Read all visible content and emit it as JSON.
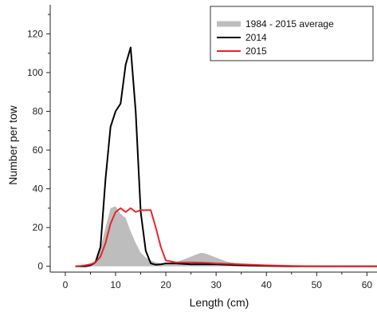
{
  "chart_data": {
    "type": "area",
    "xlabel": "Length (cm)",
    "ylabel": "Number per tow",
    "xlim": [
      -3,
      62
    ],
    "ylim": [
      -3,
      135
    ],
    "xticks": [
      0,
      10,
      20,
      30,
      40,
      50,
      60
    ],
    "yticks": [
      0,
      20,
      40,
      60,
      80,
      100,
      120
    ],
    "legend_position": "top-right",
    "series": [
      {
        "name": "1984 - 2015 average",
        "kind": "area",
        "color": "#bdbdbd",
        "x": [
          2,
          3,
          4,
          5,
          6,
          7,
          8,
          9,
          10,
          11,
          12,
          13,
          14,
          15,
          16,
          17,
          18,
          19,
          20,
          21,
          22,
          23,
          24,
          25,
          26,
          27,
          28,
          29,
          30,
          31,
          32,
          33,
          34,
          35,
          36,
          38,
          40,
          45,
          50,
          55,
          62
        ],
        "y": [
          0,
          0.1,
          0.3,
          1,
          3,
          9,
          20,
          30,
          31,
          27,
          25,
          18,
          12,
          7,
          4.5,
          3,
          2,
          1.5,
          1.3,
          1.5,
          2,
          3,
          4,
          5,
          6,
          7,
          6.5,
          5.5,
          4.5,
          3.5,
          2.5,
          2,
          1.5,
          1,
          0.8,
          0.5,
          0.3,
          0.1,
          0.05,
          0,
          0
        ]
      },
      {
        "name": "2014",
        "kind": "line",
        "color": "#000000",
        "x": [
          2,
          3,
          4,
          5,
          6,
          7,
          8,
          9,
          10,
          11,
          12,
          13,
          14,
          15,
          16,
          17,
          18,
          19,
          20,
          22,
          25,
          30,
          35,
          40,
          45,
          50,
          55,
          62
        ],
        "y": [
          0,
          0,
          0,
          0.5,
          2,
          10,
          45,
          72,
          80,
          84,
          104,
          113,
          80,
          28,
          8,
          1.5,
          0.8,
          1,
          1.5,
          1.5,
          1,
          1,
          0.5,
          0.2,
          0,
          0,
          0,
          0
        ]
      },
      {
        "name": "2015",
        "kind": "line",
        "color": "#e8242a",
        "x": [
          2,
          3,
          4,
          5,
          6,
          7,
          8,
          9,
          10,
          11,
          12,
          13,
          14,
          15,
          16,
          17,
          18,
          19,
          20,
          21,
          22,
          23,
          25,
          28,
          30,
          33,
          35,
          40,
          45,
          50,
          55,
          62
        ],
        "y": [
          0,
          0.2,
          0.5,
          1,
          2,
          5,
          12,
          22,
          28,
          30,
          28,
          30,
          28,
          29,
          29,
          29,
          20,
          10,
          3,
          2.5,
          2,
          2,
          2,
          1.8,
          1.5,
          1.2,
          1,
          0.5,
          0.2,
          0,
          0,
          0
        ]
      }
    ]
  }
}
